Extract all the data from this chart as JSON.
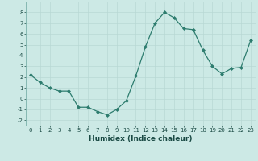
{
  "x": [
    0,
    1,
    2,
    3,
    4,
    5,
    6,
    7,
    8,
    9,
    10,
    11,
    12,
    13,
    14,
    15,
    16,
    17,
    18,
    19,
    20,
    21,
    22,
    23
  ],
  "y": [
    2.2,
    1.5,
    1.0,
    0.7,
    0.7,
    -0.8,
    -0.8,
    -1.2,
    -1.5,
    -1.0,
    -0.2,
    2.1,
    4.8,
    7.0,
    8.0,
    7.5,
    6.5,
    6.4,
    4.5,
    3.0,
    2.3,
    2.8,
    2.9,
    5.4
  ],
  "line_color": "#2d7c6e",
  "marker": "D",
  "marker_size": 2.0,
  "xlabel": "Humidex (Indice chaleur)",
  "xlim": [
    -0.5,
    23.5
  ],
  "ylim": [
    -2.5,
    9.0
  ],
  "yticks": [
    -2,
    -1,
    0,
    1,
    2,
    3,
    4,
    5,
    6,
    7,
    8
  ],
  "xticks": [
    0,
    1,
    2,
    3,
    4,
    5,
    6,
    7,
    8,
    9,
    10,
    11,
    12,
    13,
    14,
    15,
    16,
    17,
    18,
    19,
    20,
    21,
    22,
    23
  ],
  "background_color": "#cce9e5",
  "grid_color": "#b8d8d4",
  "xlabel_fontsize": 6.5,
  "tick_fontsize": 5.0
}
